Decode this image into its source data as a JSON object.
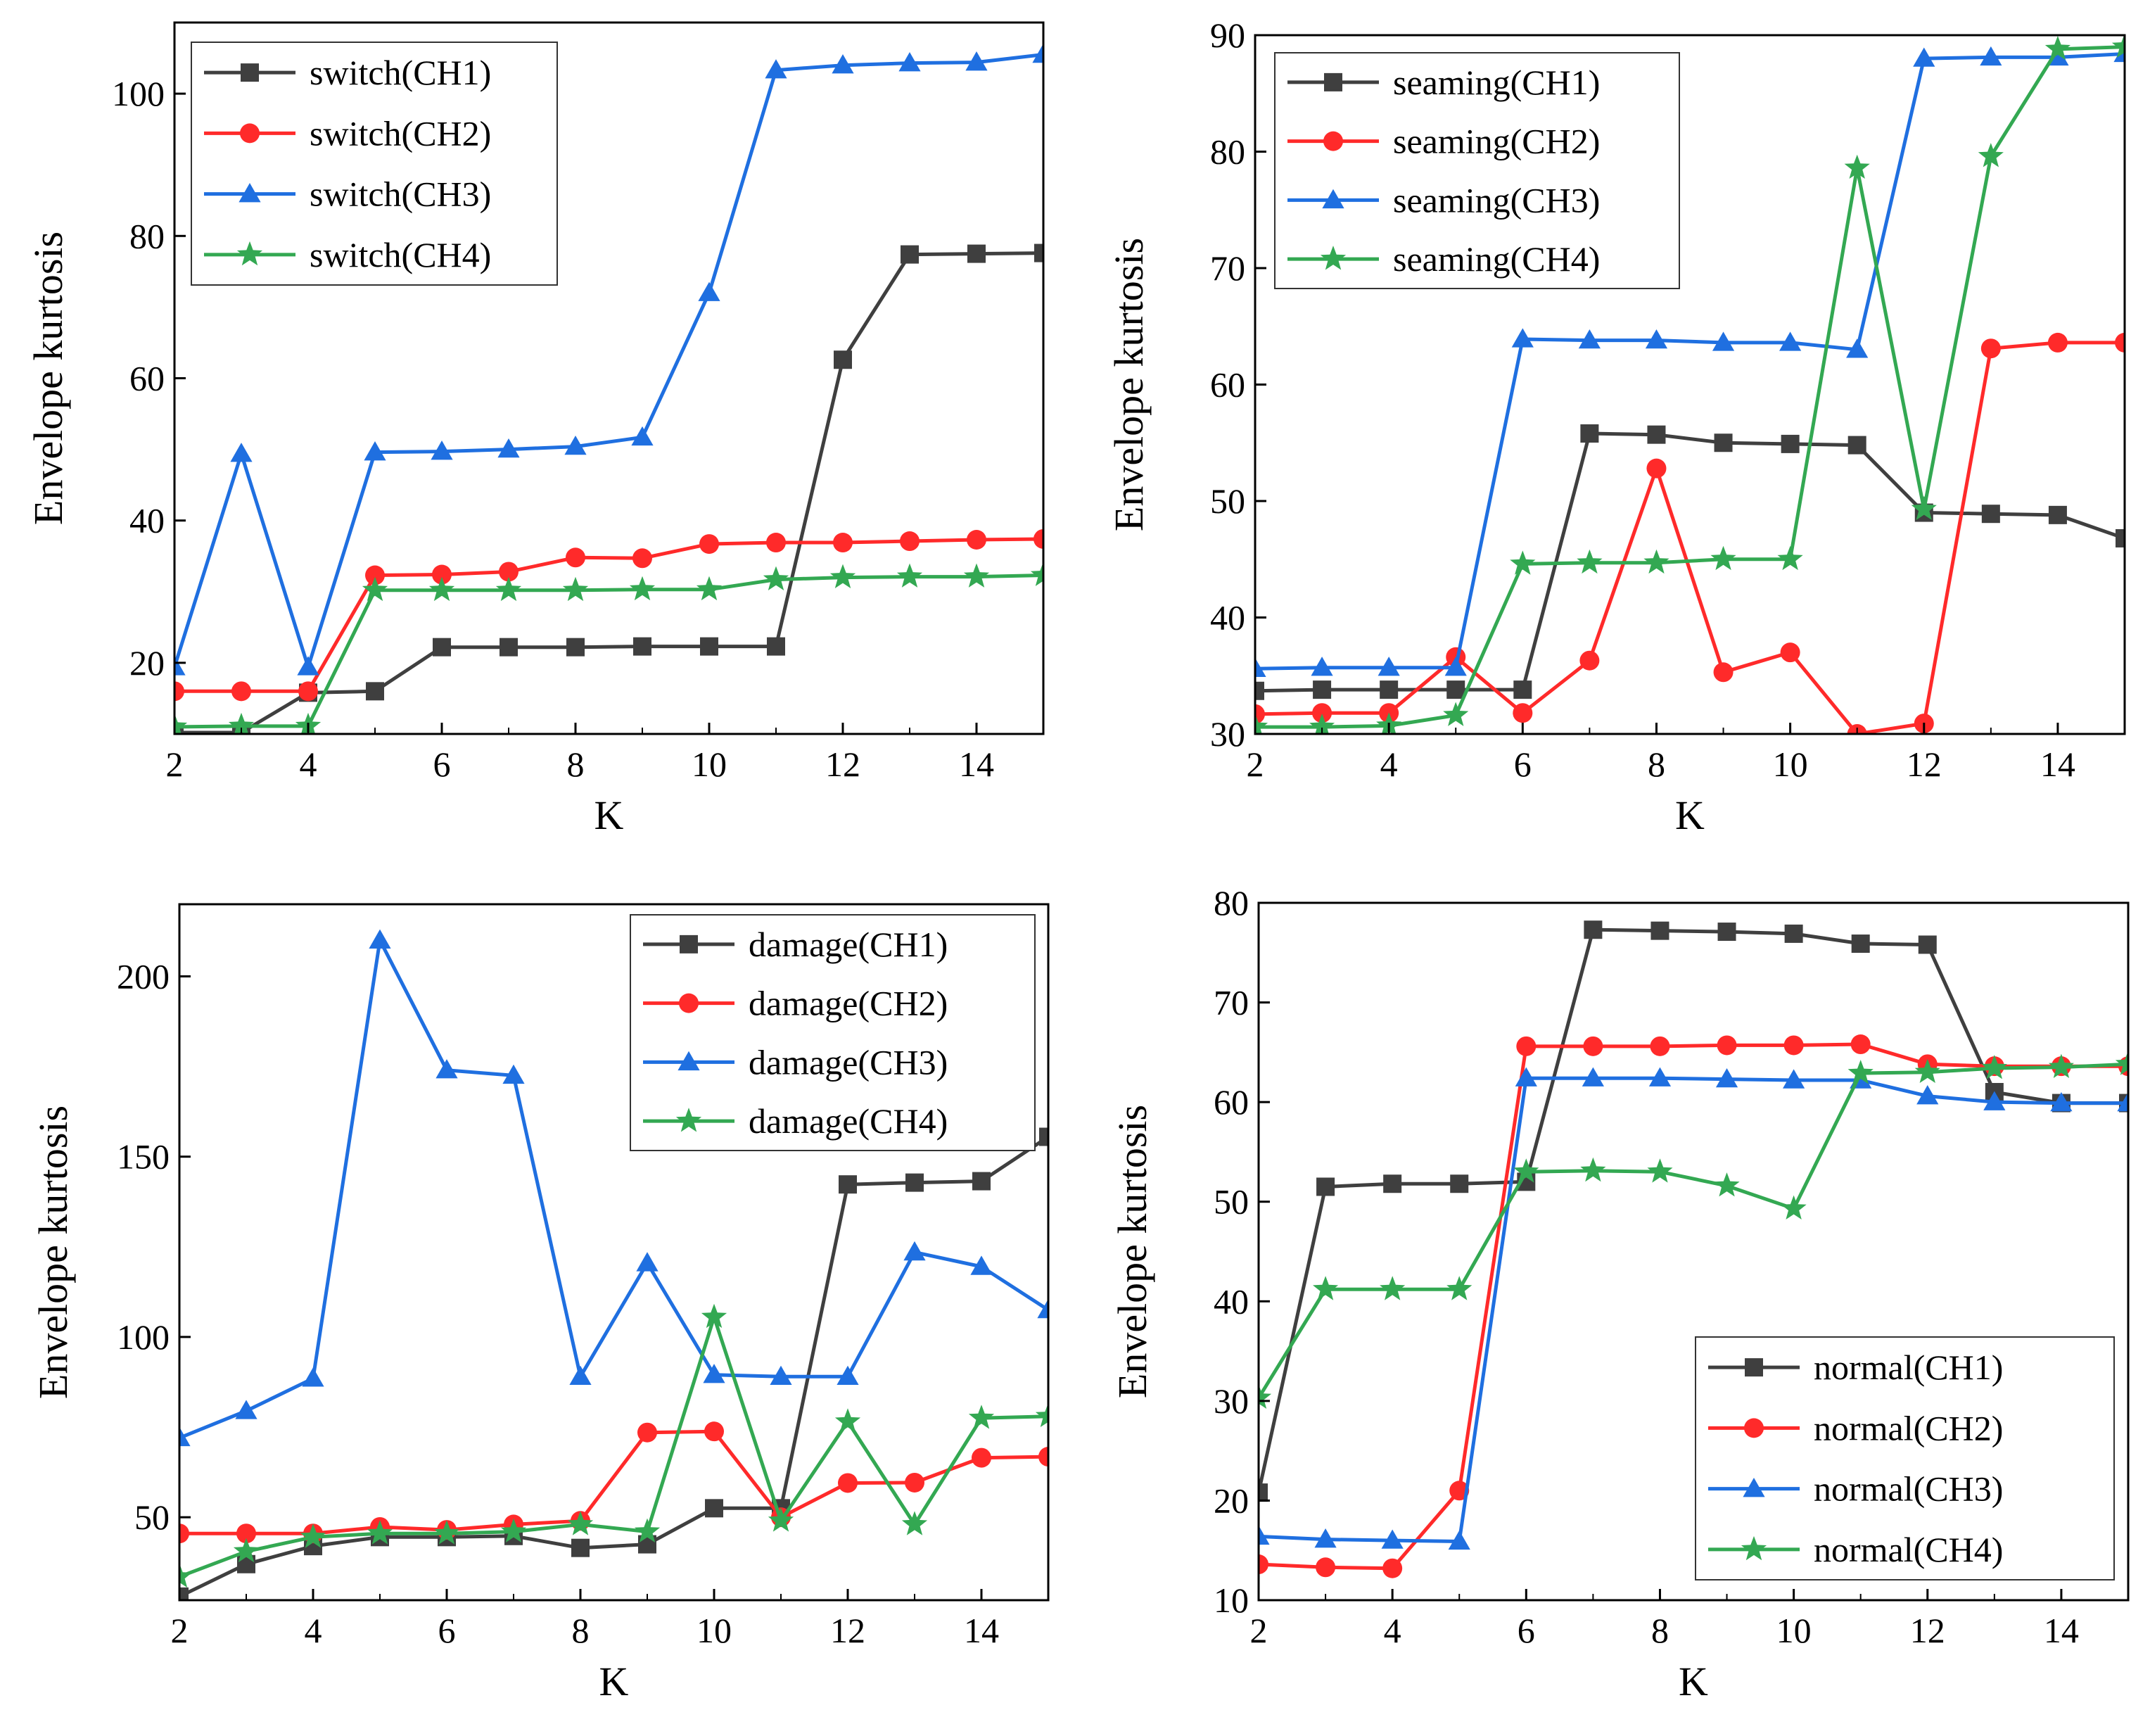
{
  "colors": {
    "CH1": "#3f3f3f",
    "CH2": "#ff2a2a",
    "CH3": "#1f6fe0",
    "CH4": "#33a852"
  },
  "chart_data": [
    {
      "type": "line",
      "xlabel": "K",
      "ylabel": "Envelope kurtosis",
      "xlim": [
        2,
        15
      ],
      "ylim": [
        10,
        110
      ],
      "xticks": [
        2,
        4,
        6,
        8,
        10,
        12,
        14
      ],
      "yticks": [
        20,
        40,
        60,
        80,
        100
      ],
      "legend_position": "top-left",
      "grid": false,
      "x": [
        2,
        3,
        4,
        5,
        6,
        7,
        8,
        9,
        10,
        11,
        12,
        13,
        14,
        15
      ],
      "series": [
        {
          "name": "switch(CH1)",
          "channel": "CH1",
          "marker": "square",
          "values": [
            10.2,
            10.2,
            15.8,
            16.0,
            22.2,
            22.2,
            22.2,
            22.3,
            22.3,
            22.3,
            62.6,
            77.4,
            77.5,
            77.6
          ]
        },
        {
          "name": "switch(CH2)",
          "channel": "CH2",
          "marker": "circle",
          "values": [
            16.0,
            16.0,
            16.0,
            32.3,
            32.4,
            32.8,
            34.8,
            34.7,
            36.7,
            36.9,
            36.9,
            37.1,
            37.3,
            37.4
          ]
        },
        {
          "name": "switch(CH3)",
          "channel": "CH3",
          "marker": "triangle",
          "values": [
            19.4,
            49.4,
            19.4,
            49.6,
            49.7,
            50.0,
            50.4,
            51.7,
            72.0,
            103.3,
            104.0,
            104.3,
            104.4,
            105.5
          ]
        },
        {
          "name": "switch(CH4)",
          "channel": "CH4",
          "marker": "star",
          "values": [
            11.0,
            11.1,
            11.1,
            30.2,
            30.2,
            30.2,
            30.2,
            30.3,
            30.3,
            31.7,
            32.0,
            32.1,
            32.1,
            32.3
          ]
        }
      ]
    },
    {
      "type": "line",
      "xlabel": "K",
      "ylabel": "Envelope kurtosis",
      "xlim": [
        2,
        15
      ],
      "ylim": [
        30,
        90
      ],
      "xticks": [
        2,
        4,
        6,
        8,
        10,
        12,
        14
      ],
      "yticks": [
        30,
        40,
        50,
        60,
        70,
        80,
        90
      ],
      "legend_position": "top-left",
      "grid": false,
      "x": [
        2,
        3,
        4,
        5,
        6,
        7,
        8,
        9,
        10,
        11,
        12,
        13,
        14,
        15
      ],
      "series": [
        {
          "name": "seaming(CH1)",
          "channel": "CH1",
          "marker": "square",
          "values": [
            33.7,
            33.8,
            33.8,
            33.8,
            33.8,
            55.8,
            55.7,
            55.0,
            54.9,
            54.8,
            49.0,
            48.9,
            48.8,
            46.8
          ]
        },
        {
          "name": "seaming(CH2)",
          "channel": "CH2",
          "marker": "circle",
          "values": [
            31.7,
            31.8,
            31.8,
            36.6,
            31.8,
            36.3,
            52.8,
            35.3,
            37.0,
            30.0,
            30.9,
            63.1,
            63.6,
            63.6
          ]
        },
        {
          "name": "seaming(CH3)",
          "channel": "CH3",
          "marker": "triangle",
          "values": [
            35.6,
            35.7,
            35.7,
            35.7,
            63.9,
            63.8,
            63.8,
            63.6,
            63.6,
            63.0,
            88.0,
            88.1,
            88.1,
            88.4
          ]
        },
        {
          "name": "seaming(CH4)",
          "channel": "CH4",
          "marker": "star",
          "values": [
            30.6,
            30.6,
            30.7,
            31.6,
            44.6,
            44.7,
            44.7,
            45.0,
            45.0,
            78.6,
            49.3,
            79.6,
            88.8,
            89.0
          ]
        }
      ]
    },
    {
      "type": "line",
      "xlabel": "K",
      "ylabel": "Envelope kurtosis",
      "xlim": [
        2,
        15
      ],
      "ylim": [
        27,
        220
      ],
      "xticks": [
        2,
        4,
        6,
        8,
        10,
        12,
        14
      ],
      "yticks": [
        50,
        100,
        150,
        200
      ],
      "legend_position": "top-right",
      "grid": false,
      "x": [
        2,
        3,
        4,
        5,
        6,
        7,
        8,
        9,
        10,
        11,
        12,
        13,
        14,
        15
      ],
      "series": [
        {
          "name": "damage(CH1)",
          "channel": "CH1",
          "marker": "square",
          "values": [
            28.0,
            37.0,
            42.0,
            44.5,
            44.5,
            44.8,
            41.5,
            42.5,
            52.5,
            52.5,
            142.3,
            142.8,
            143.2,
            155.5
          ]
        },
        {
          "name": "damage(CH2)",
          "channel": "CH2",
          "marker": "circle",
          "values": [
            45.5,
            45.5,
            45.5,
            47.3,
            46.5,
            48.0,
            49.0,
            73.5,
            73.8,
            50.0,
            59.5,
            59.6,
            66.5,
            66.8
          ]
        },
        {
          "name": "damage(CH3)",
          "channel": "CH3",
          "marker": "triangle",
          "values": [
            72.0,
            79.5,
            88.5,
            210.0,
            174.0,
            172.5,
            89.0,
            120.5,
            89.5,
            89.0,
            89.0,
            123.5,
            119.5,
            107.5
          ]
        },
        {
          "name": "damage(CH4)",
          "channel": "CH4",
          "marker": "star",
          "values": [
            33.5,
            40.5,
            44.5,
            45.5,
            45.5,
            46.0,
            48.0,
            46.0,
            105.5,
            49.0,
            76.5,
            48.0,
            77.5,
            78.0
          ]
        }
      ]
    },
    {
      "type": "line",
      "xlabel": "K",
      "ylabel": "Envelope kurtosis",
      "xlim": [
        2,
        15
      ],
      "ylim": [
        10,
        80
      ],
      "xticks": [
        2,
        4,
        6,
        8,
        10,
        12,
        14
      ],
      "yticks": [
        10,
        20,
        30,
        40,
        50,
        60,
        70,
        80
      ],
      "legend_position": "bottom-right",
      "grid": false,
      "x": [
        2,
        3,
        4,
        5,
        6,
        7,
        8,
        9,
        10,
        11,
        12,
        13,
        14,
        15
      ],
      "series": [
        {
          "name": "normal(CH1)",
          "channel": "CH1",
          "marker": "square",
          "values": [
            20.8,
            51.5,
            51.8,
            51.8,
            52.0,
            77.3,
            77.2,
            77.1,
            76.9,
            75.9,
            75.8,
            61.0,
            59.9,
            59.9
          ]
        },
        {
          "name": "normal(CH2)",
          "channel": "CH2",
          "marker": "circle",
          "values": [
            13.6,
            13.3,
            13.2,
            21.0,
            65.6,
            65.6,
            65.6,
            65.7,
            65.7,
            65.8,
            63.8,
            63.6,
            63.6,
            63.6
          ]
        },
        {
          "name": "normal(CH3)",
          "channel": "CH3",
          "marker": "triangle",
          "values": [
            16.4,
            16.1,
            16.0,
            15.9,
            62.4,
            62.4,
            62.4,
            62.3,
            62.2,
            62.2,
            60.6,
            60.0,
            59.9,
            59.9
          ]
        },
        {
          "name": "normal(CH4)",
          "channel": "CH4",
          "marker": "star",
          "values": [
            30.3,
            41.2,
            41.2,
            41.2,
            53.0,
            53.1,
            53.0,
            51.6,
            49.3,
            62.9,
            63.0,
            63.4,
            63.5,
            63.8
          ]
        }
      ]
    }
  ]
}
